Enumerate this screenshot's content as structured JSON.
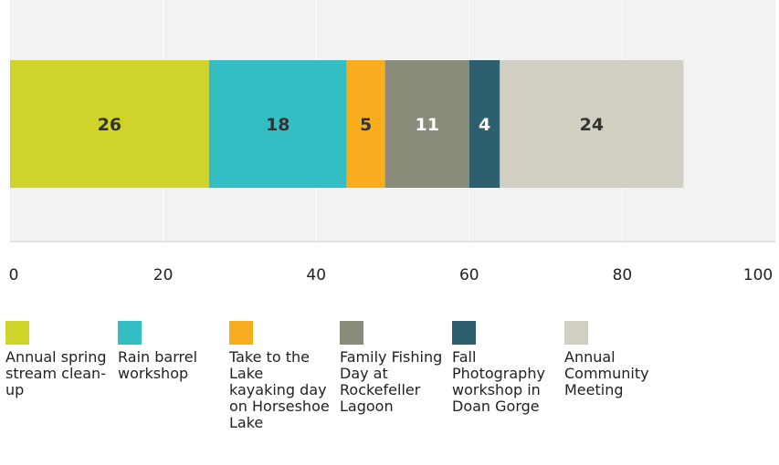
{
  "chart_data": {
    "type": "bar",
    "orientation": "horizontal",
    "stacked": true,
    "title": "",
    "xlabel": "",
    "ylabel": "",
    "xlim": [
      0,
      100
    ],
    "x_ticks": [
      0,
      20,
      40,
      60,
      80,
      100
    ],
    "x_tick_labels": [
      "0",
      "20",
      "40",
      "60",
      "80",
      "100"
    ],
    "grid": true,
    "legend_position": "bottom",
    "series": [
      {
        "name": "Annual spring stream clean-up",
        "values": [
          26
        ],
        "color": "#d0d42a",
        "label_color": "#333333"
      },
      {
        "name": "Rain barrel workshop",
        "values": [
          18
        ],
        "color": "#34bec4",
        "label_color": "#333333"
      },
      {
        "name": "Take to the Lake kayaking day on Horseshoe Lake",
        "values": [
          5
        ],
        "color": "#f8ad1e",
        "label_color": "#333333"
      },
      {
        "name": "Family Fishing Day at Rockefeller Lagoon",
        "values": [
          11
        ],
        "color": "#8a8b7b",
        "label_color": "#ffffff"
      },
      {
        "name": "Fall Photography workshop in Doan Gorge",
        "values": [
          4
        ],
        "color": "#2e5f6e",
        "label_color": "#ffffff"
      },
      {
        "name": "Annual Community Meeting",
        "values": [
          24
        ],
        "color": "#d0cfc1",
        "label_color": "#333333"
      }
    ],
    "colors": {
      "plot_background": "#f2f2f2",
      "grid": "#ffffff",
      "axis": "#cccccc",
      "text": "#222222"
    }
  }
}
